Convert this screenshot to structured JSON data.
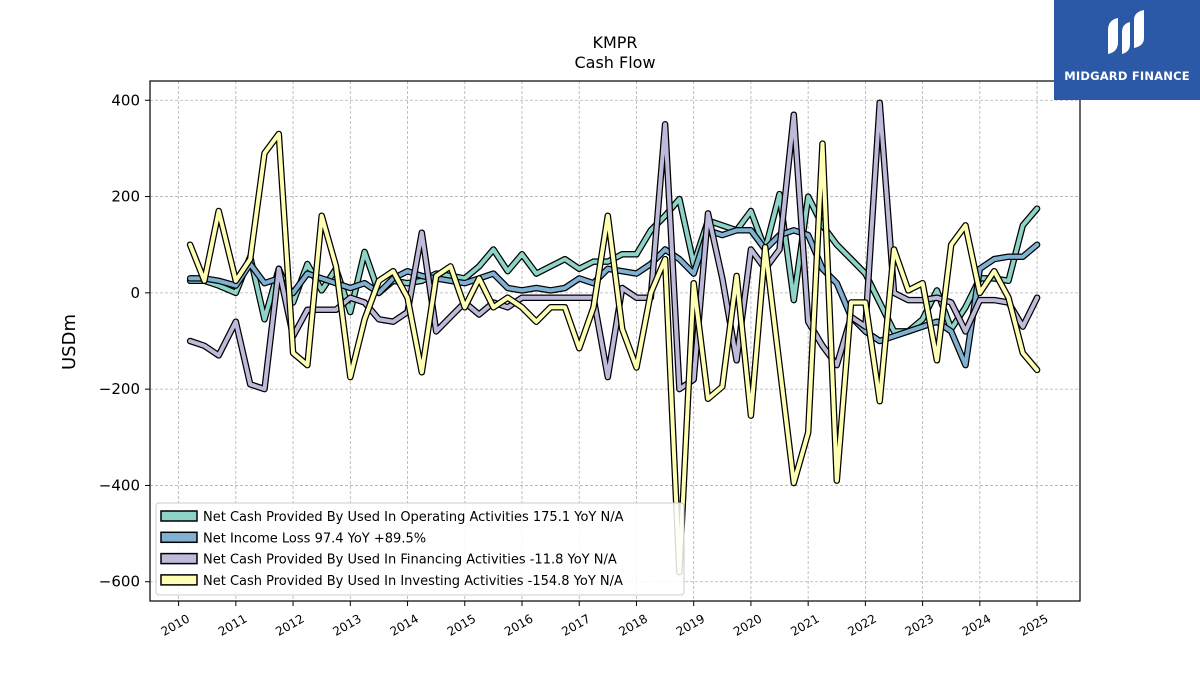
{
  "chart_data": {
    "type": "line",
    "title": "KMPR",
    "subtitle": "Cash Flow",
    "ylabel": "USDm",
    "xlabel": "",
    "ylim": [
      -640,
      440
    ],
    "yticks": [
      400,
      200,
      0,
      -200,
      -400,
      -600
    ],
    "ytick_labels": [
      "400",
      "200",
      "0",
      "−200",
      "−400",
      "−600"
    ],
    "xlim": [
      2009.5,
      2025.75
    ],
    "xticks": [
      2010,
      2011,
      2012,
      2013,
      2014,
      2015,
      2016,
      2017,
      2018,
      2019,
      2020,
      2021,
      2022,
      2023,
      2024,
      2025
    ],
    "xtick_labels": [
      "2010",
      "2011",
      "2012",
      "2013",
      "2014",
      "2015",
      "2016",
      "2017",
      "2018",
      "2019",
      "2020",
      "2021",
      "2022",
      "2023",
      "2024",
      "2025"
    ],
    "grid": true,
    "legend_position": "bottom-left",
    "x": [
      2010.2,
      2010.45,
      2010.7,
      2011.0,
      2011.25,
      2011.5,
      2011.75,
      2012.0,
      2012.25,
      2012.5,
      2012.75,
      2013.0,
      2013.25,
      2013.5,
      2013.75,
      2014.0,
      2014.25,
      2014.5,
      2014.75,
      2015.0,
      2015.25,
      2015.5,
      2015.75,
      2016.0,
      2016.25,
      2016.5,
      2016.75,
      2017.0,
      2017.25,
      2017.5,
      2017.75,
      2018.0,
      2018.25,
      2018.5,
      2018.75,
      2019.0,
      2019.25,
      2019.5,
      2019.75,
      2020.0,
      2020.25,
      2020.5,
      2020.75,
      2021.0,
      2021.25,
      2021.5,
      2021.75,
      2022.0,
      2022.25,
      2022.5,
      2022.75,
      2023.0,
      2023.25,
      2023.5,
      2023.75,
      2024.0,
      2024.25,
      2024.5,
      2024.75,
      2025.0
    ],
    "series": [
      {
        "name": "Net Cash Provided By Used In Operating Activities  175.1 YoY N/A",
        "color": "#8dd3c7",
        "values": [
          25,
          25,
          15,
          0,
          75,
          -55,
          50,
          -20,
          60,
          5,
          50,
          -40,
          85,
          0,
          25,
          20,
          25,
          40,
          35,
          30,
          55,
          90,
          45,
          80,
          40,
          55,
          70,
          50,
          65,
          65,
          80,
          80,
          130,
          160,
          195,
          60,
          150,
          140,
          130,
          170,
          90,
          205,
          -15,
          200,
          140,
          100,
          70,
          40,
          -20,
          -80,
          -80,
          -55,
          5,
          -75,
          -30,
          30,
          30,
          25,
          140,
          175
        ]
      },
      {
        "name": "Net Income Loss  97.4 YoY +89.5%",
        "color": "#80b1d3",
        "values": [
          30,
          30,
          25,
          15,
          60,
          20,
          30,
          0,
          40,
          30,
          20,
          10,
          20,
          0,
          30,
          45,
          35,
          30,
          25,
          20,
          30,
          40,
          10,
          5,
          10,
          5,
          10,
          30,
          20,
          50,
          45,
          40,
          60,
          90,
          70,
          40,
          130,
          120,
          130,
          130,
          90,
          120,
          130,
          120,
          50,
          20,
          -50,
          -80,
          -100,
          -90,
          -80,
          -70,
          -60,
          -80,
          -150,
          50,
          70,
          75,
          75,
          100
        ]
      },
      {
        "name": "Net Cash Provided By Used In Financing Activities  -11.8 YoY N/A",
        "color": "#bebada",
        "values": [
          -100,
          -110,
          -130,
          -60,
          -190,
          -200,
          50,
          -90,
          -35,
          -35,
          -35,
          -10,
          -20,
          -55,
          -60,
          -40,
          125,
          -80,
          -50,
          -20,
          -45,
          -20,
          -30,
          -10,
          -10,
          -10,
          -10,
          -10,
          -10,
          -175,
          10,
          -10,
          -10,
          350,
          -200,
          -180,
          165,
          30,
          -140,
          90,
          50,
          90,
          370,
          -60,
          -110,
          -150,
          -50,
          -70,
          395,
          0,
          -15,
          -15,
          -10,
          -20,
          -80,
          -15,
          -15,
          -20,
          -70,
          -10
        ]
      },
      {
        "name": "Net Cash Provided By Used In Investing Activities  -154.8 YoY N/A",
        "color": "#ffffb3",
        "values": [
          100,
          25,
          170,
          25,
          70,
          290,
          330,
          -125,
          -150,
          160,
          55,
          -175,
          -55,
          25,
          45,
          -10,
          -165,
          35,
          55,
          -30,
          30,
          -30,
          -10,
          -30,
          -60,
          -30,
          -30,
          -115,
          -30,
          160,
          -75,
          -155,
          0,
          70,
          -580,
          20,
          -220,
          -195,
          35,
          -255,
          95,
          -150,
          -395,
          -290,
          310,
          -390,
          -20,
          -20,
          -225,
          90,
          5,
          20,
          -140,
          100,
          140,
          0,
          45,
          -10,
          -125,
          -160
        ]
      }
    ]
  },
  "logo": {
    "text": "MIDGARD FINANCE"
  }
}
